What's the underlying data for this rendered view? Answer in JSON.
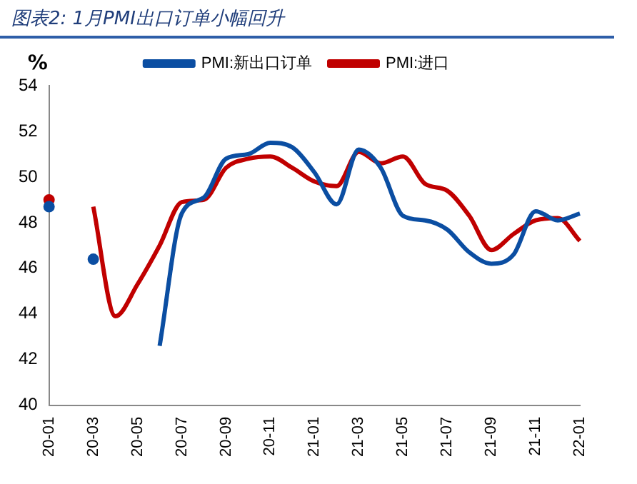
{
  "chart_data": {
    "type": "line",
    "title": "图表2: 1月PMI出口订单小幅回升",
    "ylabel": "%",
    "categories": [
      "20-01",
      null,
      "20-03",
      null,
      "20-05",
      null,
      "20-07",
      null,
      "20-09",
      null,
      "20-11",
      null,
      "21-01",
      null,
      "21-03",
      null,
      "21-05",
      null,
      "21-07",
      null,
      "21-09",
      null,
      "21-11",
      null,
      "22-01"
    ],
    "series": [
      {
        "name": "PMI:新出口订单",
        "color": "#0b4ea2",
        "values": [
          48.7,
          null,
          46.4,
          null,
          null,
          42.6,
          48.4,
          49.1,
          50.8,
          51.0,
          51.5,
          51.3,
          50.2,
          48.8,
          51.2,
          50.4,
          48.3,
          48.1,
          47.7,
          46.7,
          46.2,
          46.6,
          48.5,
          48.1,
          48.4
        ]
      },
      {
        "name": "PMI:进口",
        "color": "#c00000",
        "values": [
          49.0,
          null,
          48.7,
          43.9,
          45.3,
          47.0,
          48.9,
          49.0,
          50.4,
          50.8,
          50.9,
          50.4,
          49.8,
          49.6,
          51.1,
          50.6,
          50.9,
          49.7,
          49.4,
          48.3,
          46.8,
          47.5,
          48.1,
          48.2,
          47.2
        ]
      }
    ],
    "ylim": [
      40,
      54
    ],
    "yticks": [
      40,
      42,
      44,
      46,
      48,
      50,
      52,
      54
    ],
    "legend": "top",
    "grid": false,
    "marker": "none",
    "line_style": "solid"
  }
}
